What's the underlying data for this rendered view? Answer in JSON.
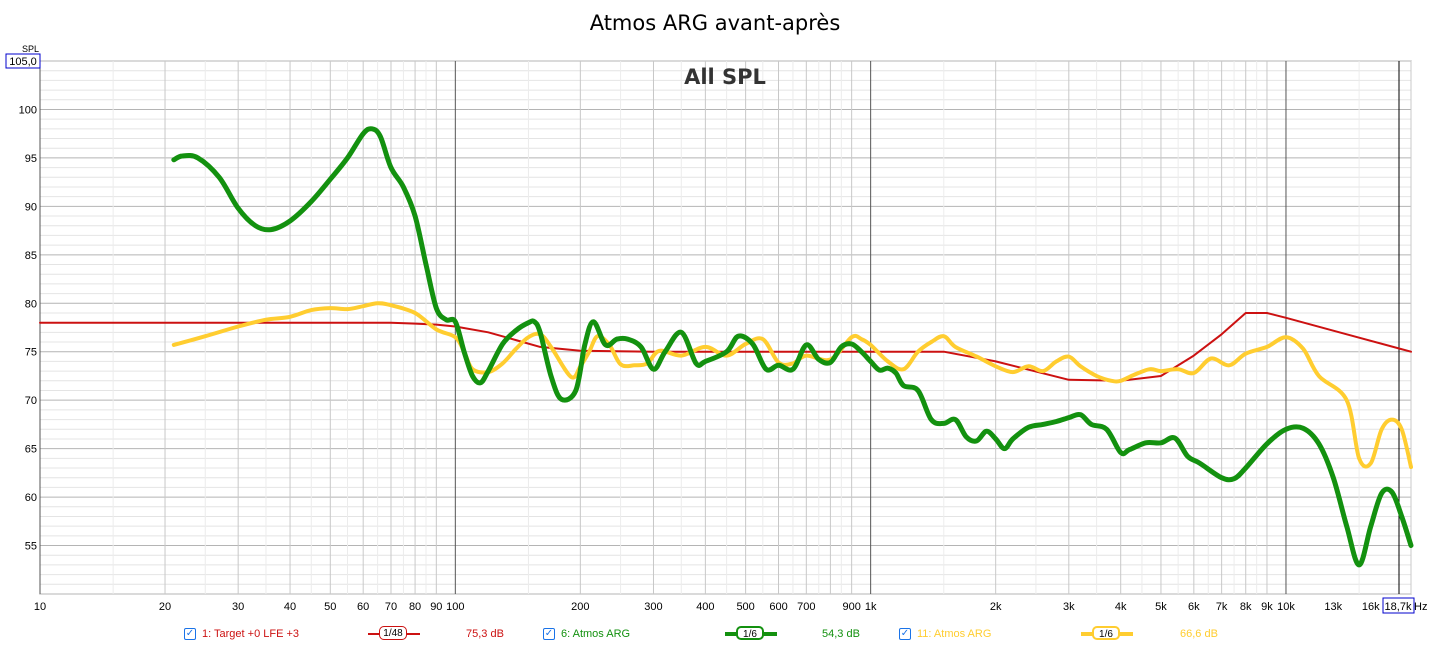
{
  "chart_data": {
    "type": "line",
    "title": "Atmos ARG avant-après",
    "inner_title": "All SPL",
    "y_unit": "SPL",
    "x_unit": "Hz",
    "x_scale": "log",
    "xlim": [
      10,
      20000
    ],
    "ylim": [
      50,
      105
    ],
    "y_top_label": "105,0",
    "x_end_label": "18,7k",
    "grid": true,
    "y_ticks": [
      {
        "value": 55,
        "label": "55"
      },
      {
        "value": 60,
        "label": "60"
      },
      {
        "value": 65,
        "label": "65"
      },
      {
        "value": 70,
        "label": "70"
      },
      {
        "value": 75,
        "label": "75"
      },
      {
        "value": 80,
        "label": "80"
      },
      {
        "value": 85,
        "label": "85"
      },
      {
        "value": 90,
        "label": "90"
      },
      {
        "value": 95,
        "label": "95"
      },
      {
        "value": 100,
        "label": "100"
      }
    ],
    "x_ticks": [
      {
        "value": 10,
        "label": "10"
      },
      {
        "value": 20,
        "label": "20"
      },
      {
        "value": 30,
        "label": "30"
      },
      {
        "value": 40,
        "label": "40"
      },
      {
        "value": 50,
        "label": "50"
      },
      {
        "value": 60,
        "label": "60"
      },
      {
        "value": 70,
        "label": "70"
      },
      {
        "value": 80,
        "label": "80"
      },
      {
        "value": 90,
        "label": "90"
      },
      {
        "value": 100,
        "label": "100"
      },
      {
        "value": 200,
        "label": "200"
      },
      {
        "value": 300,
        "label": "300"
      },
      {
        "value": 400,
        "label": "400"
      },
      {
        "value": 500,
        "label": "500"
      },
      {
        "value": 600,
        "label": "600"
      },
      {
        "value": 700,
        "label": "700"
      },
      {
        "value": 900,
        "label": "900"
      },
      {
        "value": 1000,
        "label": "1k"
      },
      {
        "value": 2000,
        "label": "2k"
      },
      {
        "value": 3000,
        "label": "3k"
      },
      {
        "value": 4000,
        "label": "4k"
      },
      {
        "value": 5000,
        "label": "5k"
      },
      {
        "value": 6000,
        "label": "6k"
      },
      {
        "value": 7000,
        "label": "7k"
      },
      {
        "value": 8000,
        "label": "8k"
      },
      {
        "value": 9000,
        "label": "9k"
      },
      {
        "value": 10000,
        "label": "10k"
      },
      {
        "value": 13000,
        "label": "13k",
        "muted": true
      },
      {
        "value": 16000,
        "label": "16k"
      }
    ],
    "series": [
      {
        "name": "1: Target +0 LFE +3",
        "color": "#cc1111",
        "width": 2,
        "smoothing": "1/48",
        "value_label": "75,3 dB",
        "points": [
          [
            10,
            78
          ],
          [
            20,
            78
          ],
          [
            30,
            78
          ],
          [
            40,
            78
          ],
          [
            50,
            78
          ],
          [
            60,
            78
          ],
          [
            70,
            78
          ],
          [
            80,
            77.9
          ],
          [
            90,
            77.8
          ],
          [
            100,
            77.6
          ],
          [
            120,
            77
          ],
          [
            140,
            76.2
          ],
          [
            160,
            75.5
          ],
          [
            200,
            75.1
          ],
          [
            300,
            75
          ],
          [
            500,
            75
          ],
          [
            1000,
            75
          ],
          [
            1500,
            75
          ],
          [
            2000,
            74
          ],
          [
            3000,
            72.1
          ],
          [
            4000,
            72
          ],
          [
            5000,
            72.5
          ],
          [
            6000,
            74.6
          ],
          [
            7000,
            76.8
          ],
          [
            8000,
            79
          ],
          [
            9000,
            79
          ],
          [
            10000,
            78.5
          ],
          [
            14000,
            76.8
          ],
          [
            20000,
            75
          ]
        ]
      },
      {
        "name": "6: Atmos ARG",
        "color": "#13910f",
        "width": 5,
        "smoothing": "1/6",
        "value_label": "54,3 dB",
        "points": [
          [
            21,
            94.8
          ],
          [
            22,
            95.2
          ],
          [
            24,
            95
          ],
          [
            27,
            93
          ],
          [
            30,
            89.8
          ],
          [
            33,
            88
          ],
          [
            36,
            87.6
          ],
          [
            40,
            88.5
          ],
          [
            45,
            90.5
          ],
          [
            50,
            92.8
          ],
          [
            55,
            95
          ],
          [
            60,
            97.5
          ],
          [
            63,
            98
          ],
          [
            66,
            97.2
          ],
          [
            70,
            94
          ],
          [
            75,
            92
          ],
          [
            80,
            89
          ],
          [
            85,
            84
          ],
          [
            90,
            79.5
          ],
          [
            95,
            78.3
          ],
          [
            100,
            78.1
          ],
          [
            105,
            75
          ],
          [
            110,
            72.5
          ],
          [
            115,
            71.8
          ],
          [
            120,
            73
          ],
          [
            130,
            75.8
          ],
          [
            140,
            77.2
          ],
          [
            150,
            78
          ],
          [
            155,
            78.1
          ],
          [
            160,
            77
          ],
          [
            170,
            72.5
          ],
          [
            180,
            70.1
          ],
          [
            195,
            71
          ],
          [
            205,
            75.7
          ],
          [
            215,
            78.1
          ],
          [
            230,
            75.7
          ],
          [
            245,
            76.3
          ],
          [
            260,
            76.3
          ],
          [
            280,
            75.5
          ],
          [
            300,
            73.2
          ],
          [
            320,
            75
          ],
          [
            350,
            77
          ],
          [
            380,
            73.8
          ],
          [
            400,
            74
          ],
          [
            450,
            75
          ],
          [
            480,
            76.6
          ],
          [
            520,
            75.8
          ],
          [
            560,
            73.2
          ],
          [
            600,
            73.6
          ],
          [
            650,
            73.2
          ],
          [
            700,
            75.7
          ],
          [
            750,
            74.2
          ],
          [
            800,
            73.9
          ],
          [
            850,
            75.5
          ],
          [
            900,
            75.8
          ],
          [
            950,
            75
          ],
          [
            1000,
            74
          ],
          [
            1050,
            73.1
          ],
          [
            1100,
            73.3
          ],
          [
            1150,
            72.8
          ],
          [
            1200,
            71.5
          ],
          [
            1300,
            71
          ],
          [
            1400,
            68
          ],
          [
            1500,
            67.6
          ],
          [
            1600,
            68
          ],
          [
            1700,
            66.2
          ],
          [
            1800,
            65.8
          ],
          [
            1900,
            66.8
          ],
          [
            2000,
            66
          ],
          [
            2100,
            65
          ],
          [
            2200,
            66
          ],
          [
            2400,
            67.2
          ],
          [
            2600,
            67.5
          ],
          [
            2800,
            67.8
          ],
          [
            3000,
            68.2
          ],
          [
            3200,
            68.5
          ],
          [
            3400,
            67.5
          ],
          [
            3700,
            67
          ],
          [
            4000,
            64.6
          ],
          [
            4200,
            64.9
          ],
          [
            4600,
            65.6
          ],
          [
            5000,
            65.6
          ],
          [
            5400,
            66.1
          ],
          [
            5800,
            64.2
          ],
          [
            6200,
            63.5
          ],
          [
            7000,
            62
          ],
          [
            7500,
            61.9
          ],
          [
            8000,
            63
          ],
          [
            9000,
            65.5
          ],
          [
            10000,
            67
          ],
          [
            11000,
            67.1
          ],
          [
            12000,
            65.5
          ],
          [
            13000,
            62
          ],
          [
            14000,
            57
          ],
          [
            15000,
            53
          ],
          [
            16000,
            57
          ],
          [
            17000,
            60.4
          ],
          [
            18000,
            60.5
          ],
          [
            19000,
            58
          ],
          [
            20000,
            55
          ]
        ]
      },
      {
        "name": "11: Atmos ARG",
        "color": "#ffcd30",
        "width": 4,
        "smoothing": "1/6",
        "value_label": "66,6 dB",
        "points": [
          [
            21,
            75.7
          ],
          [
            25,
            76.6
          ],
          [
            30,
            77.6
          ],
          [
            35,
            78.3
          ],
          [
            40,
            78.6
          ],
          [
            45,
            79.3
          ],
          [
            50,
            79.5
          ],
          [
            55,
            79.4
          ],
          [
            60,
            79.7
          ],
          [
            65,
            80
          ],
          [
            70,
            79.8
          ],
          [
            80,
            79
          ],
          [
            90,
            77.3
          ],
          [
            100,
            76.5
          ],
          [
            105,
            75
          ],
          [
            110,
            73.2
          ],
          [
            120,
            72.9
          ],
          [
            130,
            73.8
          ],
          [
            140,
            75.3
          ],
          [
            150,
            76.5
          ],
          [
            160,
            76.8
          ],
          [
            170,
            75.5
          ],
          [
            190,
            72.4
          ],
          [
            200,
            73.5
          ],
          [
            210,
            75
          ],
          [
            220,
            76.6
          ],
          [
            235,
            75.7
          ],
          [
            250,
            73.7
          ],
          [
            270,
            73.6
          ],
          [
            290,
            73.8
          ],
          [
            310,
            75.1
          ],
          [
            350,
            74.6
          ],
          [
            400,
            75.5
          ],
          [
            450,
            74.6
          ],
          [
            500,
            75.8
          ],
          [
            550,
            76.3
          ],
          [
            600,
            73.9
          ],
          [
            650,
            73.8
          ],
          [
            700,
            74.6
          ],
          [
            800,
            74.2
          ],
          [
            900,
            76.5
          ],
          [
            950,
            76.3
          ],
          [
            1000,
            75.7
          ],
          [
            1100,
            74
          ],
          [
            1200,
            73.2
          ],
          [
            1300,
            75
          ],
          [
            1400,
            76
          ],
          [
            1500,
            76.6
          ],
          [
            1600,
            75.5
          ],
          [
            1800,
            74.5
          ],
          [
            2000,
            73.5
          ],
          [
            2200,
            72.9
          ],
          [
            2400,
            73.5
          ],
          [
            2600,
            73
          ],
          [
            2800,
            74
          ],
          [
            3000,
            74.5
          ],
          [
            3200,
            73.5
          ],
          [
            3500,
            72.5
          ],
          [
            3800,
            72
          ],
          [
            4000,
            72
          ],
          [
            4300,
            72.6
          ],
          [
            4700,
            73.2
          ],
          [
            5000,
            73
          ],
          [
            5500,
            73.2
          ],
          [
            6000,
            72.8
          ],
          [
            6600,
            74.3
          ],
          [
            7300,
            73.6
          ],
          [
            8000,
            74.8
          ],
          [
            9000,
            75.5
          ],
          [
            10000,
            76.5
          ],
          [
            11000,
            75.3
          ],
          [
            12000,
            72.5
          ],
          [
            14000,
            70
          ],
          [
            15000,
            64
          ],
          [
            16000,
            63.5
          ],
          [
            17000,
            67
          ],
          [
            18000,
            68
          ],
          [
            19000,
            67
          ],
          [
            20000,
            63.1
          ]
        ]
      }
    ]
  }
}
